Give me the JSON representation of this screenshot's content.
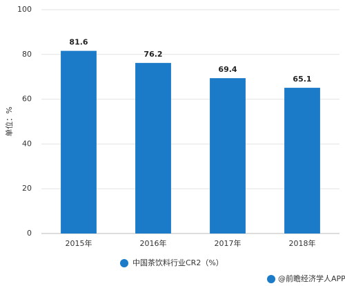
{
  "chart_data": {
    "type": "bar",
    "y_label": "单位：%",
    "categories": [
      "2015年",
      "2016年",
      "2017年",
      "2018年"
    ],
    "series": [
      {
        "name": "中国茶饮料行业CR2（%）",
        "color": "#1b7bc9",
        "values": [
          81.6,
          76.2,
          69.4,
          65.1
        ]
      }
    ],
    "ylim": [
      0,
      100
    ],
    "yticks": [
      0,
      20,
      40,
      60,
      80,
      100
    ],
    "grid": true,
    "source": "@前瞻经济学人APP"
  }
}
